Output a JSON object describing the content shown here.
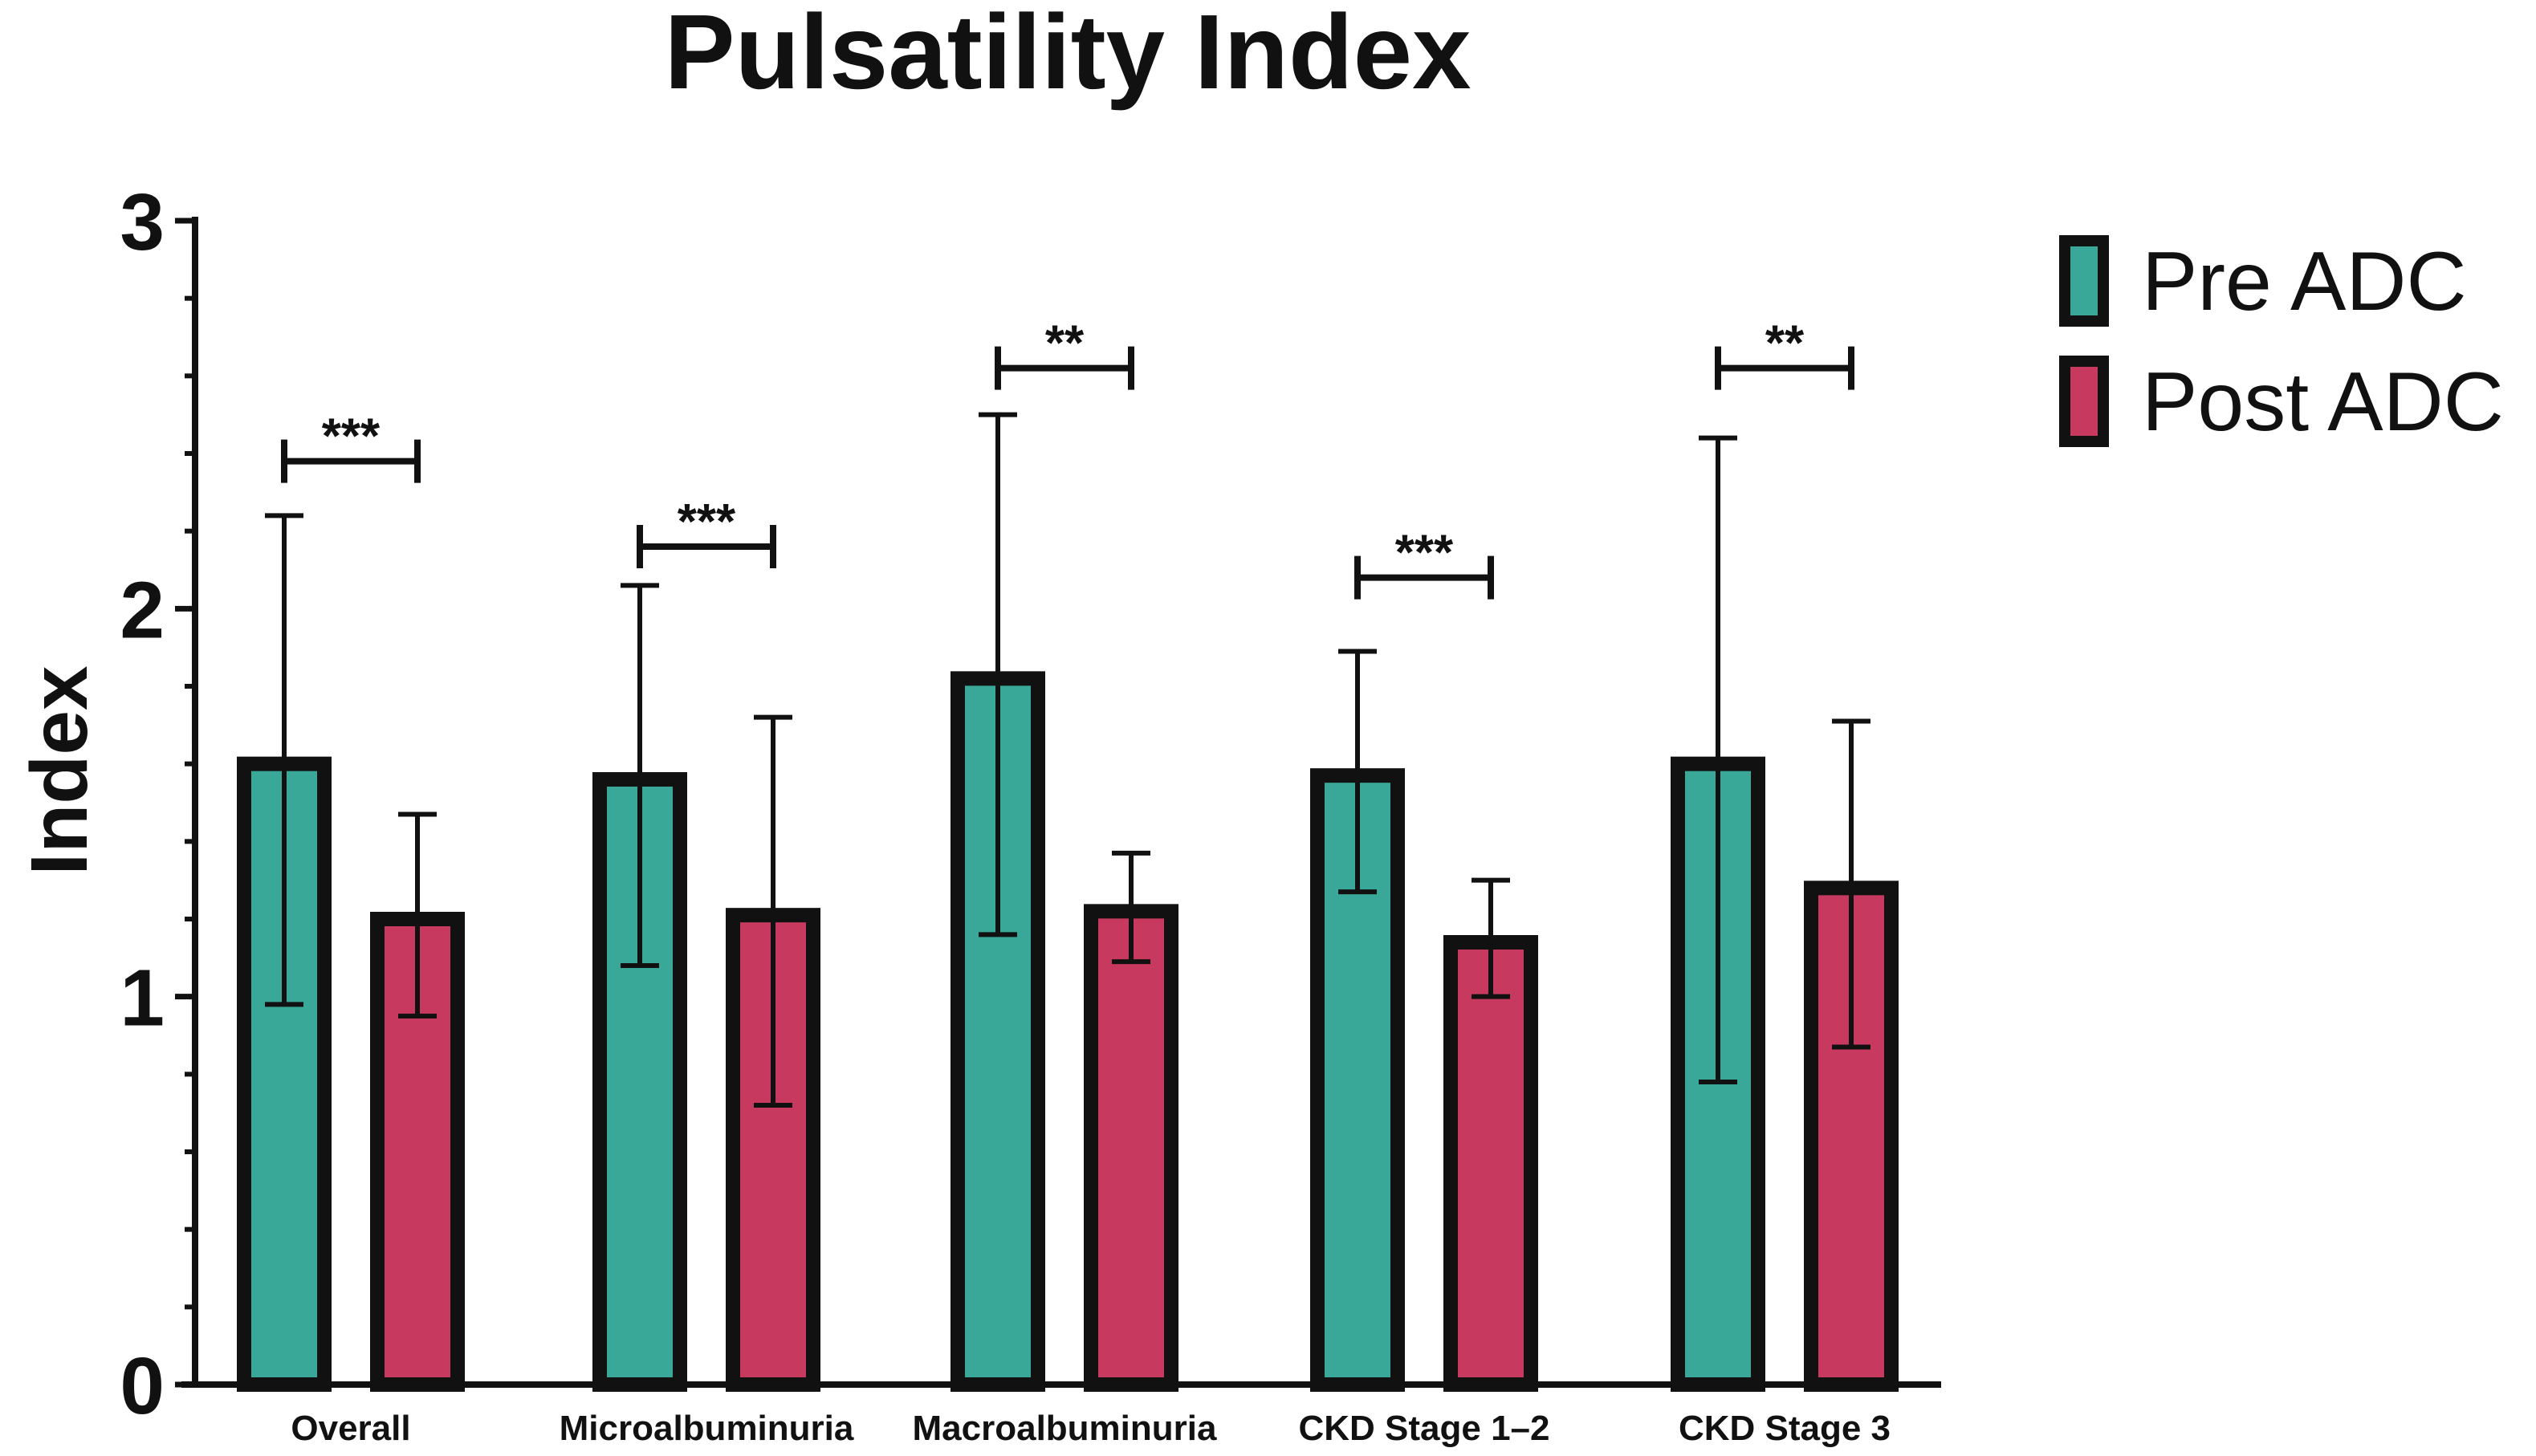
{
  "chart_data": {
    "type": "bar",
    "title": "Pulsatility Index",
    "xlabel": "",
    "ylabel": "Index",
    "ylim": [
      0,
      3
    ],
    "yticks": [
      "0",
      "1",
      "2",
      "3"
    ],
    "minor_ticks_per_major": 5,
    "grid": false,
    "legend_position": "top-right",
    "categories": [
      "Overall",
      "Microalbuminuria",
      "Macroalbuminuria",
      "CKD Stage 1–2",
      "CKD Stage 3"
    ],
    "series": [
      {
        "name": "Pre ADC",
        "color": "#3aa898",
        "values": [
          1.6,
          1.56,
          1.82,
          1.57,
          1.6
        ],
        "error_upper": [
          2.24,
          2.06,
          2.5,
          1.89,
          2.44
        ],
        "error_lower": [
          0.98,
          1.08,
          1.16,
          1.27,
          0.78
        ]
      },
      {
        "name": "Post ADC",
        "color": "#c8395f",
        "values": [
          1.2,
          1.21,
          1.22,
          1.14,
          1.28
        ],
        "error_upper": [
          1.47,
          1.72,
          1.37,
          1.3,
          1.71
        ],
        "error_lower": [
          0.95,
          0.72,
          1.09,
          1.0,
          0.87
        ]
      }
    ],
    "significance": [
      {
        "category": "Overall",
        "label": "***",
        "y": 2.38
      },
      {
        "category": "Microalbuminuria",
        "label": "***",
        "y": 2.16
      },
      {
        "category": "Macroalbuminuria",
        "label": "**",
        "y": 2.62
      },
      {
        "category": "CKD Stage 1–2",
        "label": "***",
        "y": 2.08
      },
      {
        "category": "CKD Stage 3",
        "label": "**",
        "y": 2.62
      }
    ],
    "colors": {
      "outline": "#111111",
      "pre": "#3aa898",
      "post": "#c8395f"
    }
  }
}
